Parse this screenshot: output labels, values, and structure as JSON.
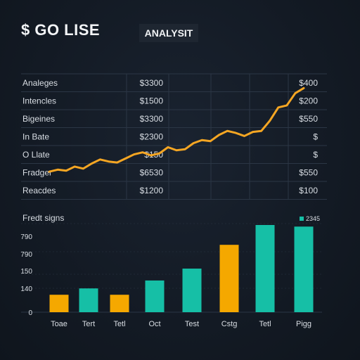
{
  "header": {
    "title": "$ GO LISE",
    "tag": "ANALYSIT"
  },
  "colors": {
    "line": "#f5a623",
    "teal": "#16bfa6",
    "orange": "#f5a800",
    "grid": "#2b3645"
  },
  "chart_data": [
    {
      "type": "line",
      "row_labels": [
        "Analeges",
        "Intencles",
        "Bigeines",
        "In Bate",
        "O Llate",
        "Fradger",
        "Reacdes"
      ],
      "col1_values": [
        "$3300",
        "$1500",
        "$3300",
        "$2300",
        "$150",
        "$6530",
        "$1200"
      ],
      "col2_values": [
        "$400",
        "$200",
        "$550",
        "$",
        "$",
        "$550",
        "$100"
      ],
      "values": [
        64,
        66,
        65,
        69,
        67,
        72,
        76,
        74,
        73,
        77,
        81,
        83,
        80,
        82,
        88,
        85,
        86,
        92,
        95,
        94,
        100,
        104,
        102,
        99,
        103,
        104,
        114,
        127,
        129,
        141,
        146
      ]
    },
    {
      "type": "bar",
      "title": "Fredt signs",
      "legend": "2345",
      "ytick_labels": [
        "0",
        "140",
        "150",
        "790",
        "790"
      ],
      "categories": [
        "Toae",
        "Tert",
        "Tetl",
        "Oct",
        "Test",
        "Cstg",
        "Tetl",
        "Pigg"
      ],
      "series": [
        {
          "values": [
            {
              "value": 22,
              "color": "orange"
            },
            {
              "value": 30,
              "color": "teal"
            },
            {
              "value": 22,
              "color": "orange"
            },
            {
              "value": 40,
              "color": "teal"
            },
            {
              "value": 55,
              "color": "teal"
            },
            {
              "value": 85,
              "color": "orange"
            },
            {
              "value": 110,
              "color": "teal"
            },
            {
              "value": 108,
              "color": "teal"
            }
          ]
        }
      ],
      "ylim": [
        0,
        110
      ]
    }
  ]
}
